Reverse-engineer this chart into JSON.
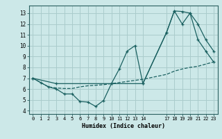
{
  "title": "",
  "xlabel": "Humidex (Indice chaleur)",
  "bg_color": "#cce8e8",
  "grid_color": "#aacccc",
  "line_color": "#1a6060",
  "xlim": [
    -0.5,
    23.5
  ],
  "ylim": [
    3.7,
    13.7
  ],
  "xticks": [
    0,
    1,
    2,
    3,
    4,
    5,
    6,
    7,
    8,
    9,
    10,
    11,
    12,
    13,
    14,
    17,
    18,
    19,
    20,
    21,
    22,
    23
  ],
  "yticks": [
    4,
    5,
    6,
    7,
    8,
    9,
    10,
    11,
    12,
    13
  ],
  "line1_x": [
    0,
    1,
    2,
    3,
    4,
    5,
    6,
    7,
    8,
    9,
    10,
    11,
    12,
    13,
    14,
    17,
    18,
    19,
    20,
    21,
    22,
    23
  ],
  "line1_y": [
    7.0,
    6.6,
    6.2,
    6.0,
    5.55,
    5.55,
    4.85,
    4.8,
    4.4,
    4.95,
    6.5,
    7.85,
    9.5,
    10.0,
    6.5,
    11.2,
    13.2,
    13.15,
    13.0,
    12.0,
    10.55,
    9.5
  ],
  "line2_x": [
    0,
    1,
    2,
    3,
    4,
    5,
    6,
    7,
    8,
    9,
    10,
    11,
    12,
    13,
    14,
    17,
    18,
    19,
    20,
    21,
    22,
    23
  ],
  "line2_y": [
    7.0,
    6.6,
    6.2,
    6.1,
    6.05,
    6.05,
    6.2,
    6.3,
    6.35,
    6.4,
    6.5,
    6.6,
    6.7,
    6.8,
    6.9,
    7.35,
    7.65,
    7.85,
    8.0,
    8.1,
    8.3,
    8.5
  ],
  "line3_x": [
    0,
    3,
    10,
    14,
    17,
    18,
    19,
    20,
    21,
    22,
    23
  ],
  "line3_y": [
    7.0,
    6.5,
    6.5,
    6.5,
    11.2,
    13.2,
    12.0,
    13.0,
    10.55,
    9.5,
    8.5
  ]
}
